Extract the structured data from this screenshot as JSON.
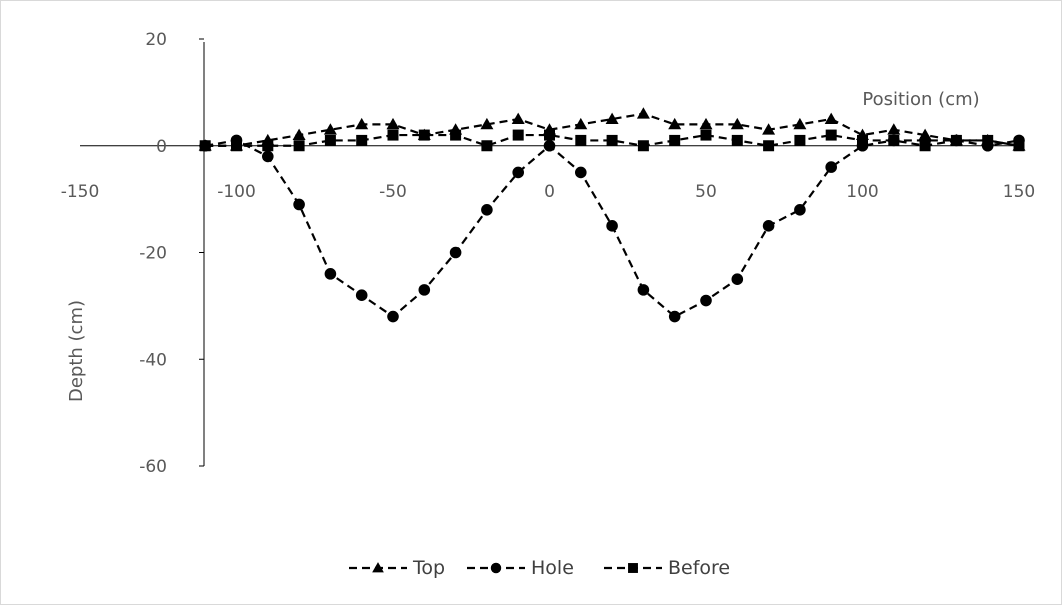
{
  "chart_data": {
    "type": "line",
    "title": "",
    "xlabel": "Position (cm)",
    "ylabel": "Depth (cm)",
    "xlim": [
      -150,
      150
    ],
    "ylim": [
      -60,
      20
    ],
    "x_ticks": [
      -150,
      -100,
      -50,
      0,
      50,
      100,
      150
    ],
    "y_ticks": [
      20,
      0,
      -20,
      -40,
      -60
    ],
    "grid": false,
    "legend_position": "bottom",
    "series": [
      {
        "name": "Top",
        "marker": "triangle",
        "color": "#000000",
        "x": [
          -110,
          -100,
          -90,
          -80,
          -70,
          -60,
          -50,
          -40,
          -30,
          -20,
          -10,
          0,
          10,
          20,
          30,
          40,
          50,
          60,
          70,
          80,
          90,
          100,
          110,
          120,
          130,
          140,
          150
        ],
        "y": [
          0,
          0,
          1,
          2,
          3,
          4,
          4,
          2,
          3,
          4,
          5,
          3,
          4,
          5,
          6,
          4,
          4,
          4,
          3,
          4,
          5,
          2,
          3,
          2,
          1,
          1,
          0
        ]
      },
      {
        "name": "Hole",
        "marker": "circle",
        "color": "#000000",
        "x": [
          -110,
          -100,
          -90,
          -80,
          -70,
          -60,
          -50,
          -40,
          -30,
          -20,
          -10,
          0,
          10,
          20,
          30,
          40,
          50,
          60,
          70,
          80,
          90,
          100,
          110,
          120,
          130,
          140,
          150
        ],
        "y": [
          0,
          1,
          -2,
          -11,
          -24,
          -28,
          -32,
          -27,
          -20,
          -12,
          -5,
          0,
          -5,
          -15,
          -27,
          -32,
          -29,
          -25,
          -15,
          -12,
          -4,
          0,
          1,
          1,
          1,
          0,
          1
        ]
      },
      {
        "name": "Before",
        "marker": "square",
        "color": "#000000",
        "x": [
          -110,
          -100,
          -90,
          -80,
          -70,
          -60,
          -50,
          -40,
          -30,
          -20,
          -10,
          0,
          10,
          20,
          30,
          40,
          50,
          60,
          70,
          80,
          90,
          100,
          110,
          120,
          130,
          140,
          150
        ],
        "y": [
          0,
          0,
          0,
          0,
          1,
          1,
          2,
          2,
          2,
          0,
          2,
          2,
          1,
          1,
          0,
          1,
          2,
          1,
          0,
          1,
          2,
          1,
          1,
          0,
          1,
          1,
          0
        ]
      }
    ]
  }
}
